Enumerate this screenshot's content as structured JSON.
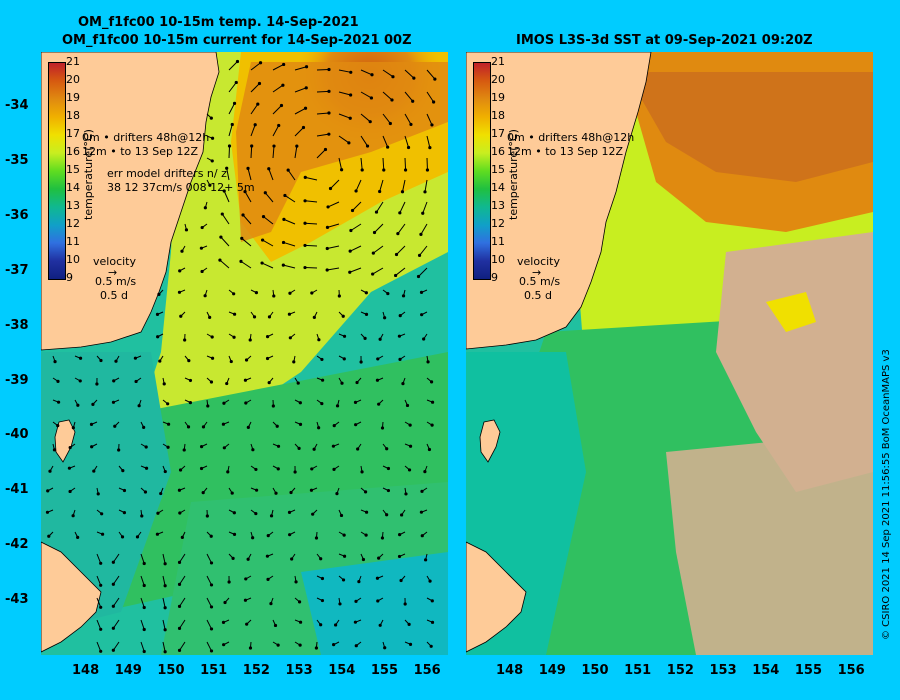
{
  "left_panel": {
    "title_line1": "OM_f1fc00 10-15m temp. 14-Sep-2021",
    "title_line2": "OM_f1fc00 10-15m current for 14-Sep-2021 00Z",
    "drifters_line1": "0m  •  drifters 48h@12h",
    "drifters_line2": "12m •  to 13 Sep 12Z",
    "err_line1": "err model drifters n/ z",
    "err_line2": "38 12 37cm/s 008 12+ 5m",
    "velocity_label": "velocity",
    "velocity_speed": "0.5 m/s",
    "velocity_time": "0.5 d"
  },
  "right_panel": {
    "title": "IMOS L3S-3d SST at 09-Sep-2021 09:20Z",
    "drifters_line1": "0m  •  drifters 48h@12h",
    "drifters_line2": "12m •  to 13 Sep 12Z",
    "velocity_label": "velocity",
    "velocity_speed": "0.5 m/s",
    "velocity_time": "0.5 d"
  },
  "colorbar": {
    "title": "temperature(°C)",
    "ticks": [
      "21",
      "20",
      "19",
      "18",
      "17",
      "16",
      "15",
      "14",
      "13",
      "12",
      "11",
      "10",
      "9"
    ],
    "colors": [
      "#c0202a",
      "#d65a10",
      "#e08a10",
      "#f0b000",
      "#f0e000",
      "#c8ee20",
      "#60dd20",
      "#20c040",
      "#10b890",
      "#10a0c8",
      "#3070e0",
      "#2030a0",
      "#102080"
    ]
  },
  "lat_ticks": [
    "-34",
    "-35",
    "-36",
    "-37",
    "-38",
    "-39",
    "-40",
    "-41",
    "-42",
    "-43"
  ],
  "lon_ticks": [
    "148",
    "149",
    "150",
    "151",
    "152",
    "153",
    "154",
    "155",
    "156"
  ],
  "credit": "© CSIRO 2021  14 Sep 2021 11:56:55 BoM OceanMAPS v3",
  "colors": {
    "land": "#fecb98",
    "cloud": "#d2b090",
    "background": "#00ccff"
  }
}
